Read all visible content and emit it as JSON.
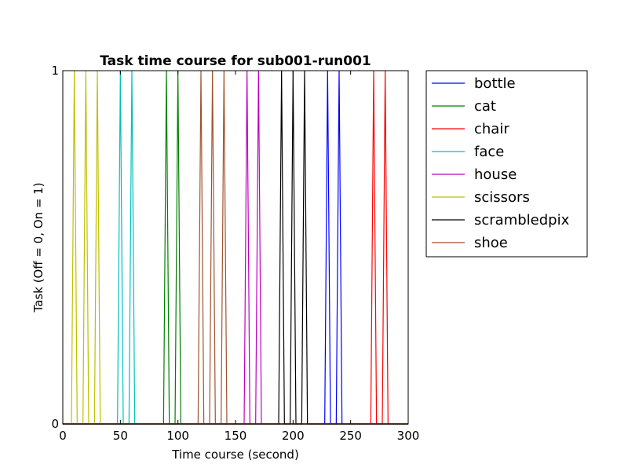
{
  "chart_data": {
    "type": "line",
    "title": "Task time course for sub001-run001",
    "xlabel": "Time course (second)",
    "ylabel": "Task (Off = 0, On = 1)",
    "xlim": [
      0,
      300
    ],
    "ylim": [
      0,
      1
    ],
    "xticks": [
      0,
      50,
      100,
      150,
      200,
      250,
      300
    ],
    "yticks": [
      0,
      1
    ],
    "grid": false,
    "legend_position": "outside-right",
    "series": [
      {
        "name": "bottle",
        "color": "#0000ff",
        "on_times": [
          230,
          240
        ]
      },
      {
        "name": "cat",
        "color": "#008000",
        "on_times": [
          90,
          100
        ]
      },
      {
        "name": "chair",
        "color": "#ff0000",
        "on_times": [
          270,
          280
        ]
      },
      {
        "name": "face",
        "color": "#00bfbf",
        "on_times": [
          50,
          60
        ]
      },
      {
        "name": "house",
        "color": "#bf00bf",
        "on_times": [
          160,
          170
        ]
      },
      {
        "name": "scissors",
        "color": "#bfbf00",
        "on_times": [
          10,
          20,
          30
        ]
      },
      {
        "name": "scrambledpix",
        "color": "#000000",
        "on_times": [
          190,
          200,
          210
        ]
      },
      {
        "name": "shoe",
        "color": "#a0522d",
        "on_times": [
          120,
          130,
          140
        ]
      }
    ]
  }
}
